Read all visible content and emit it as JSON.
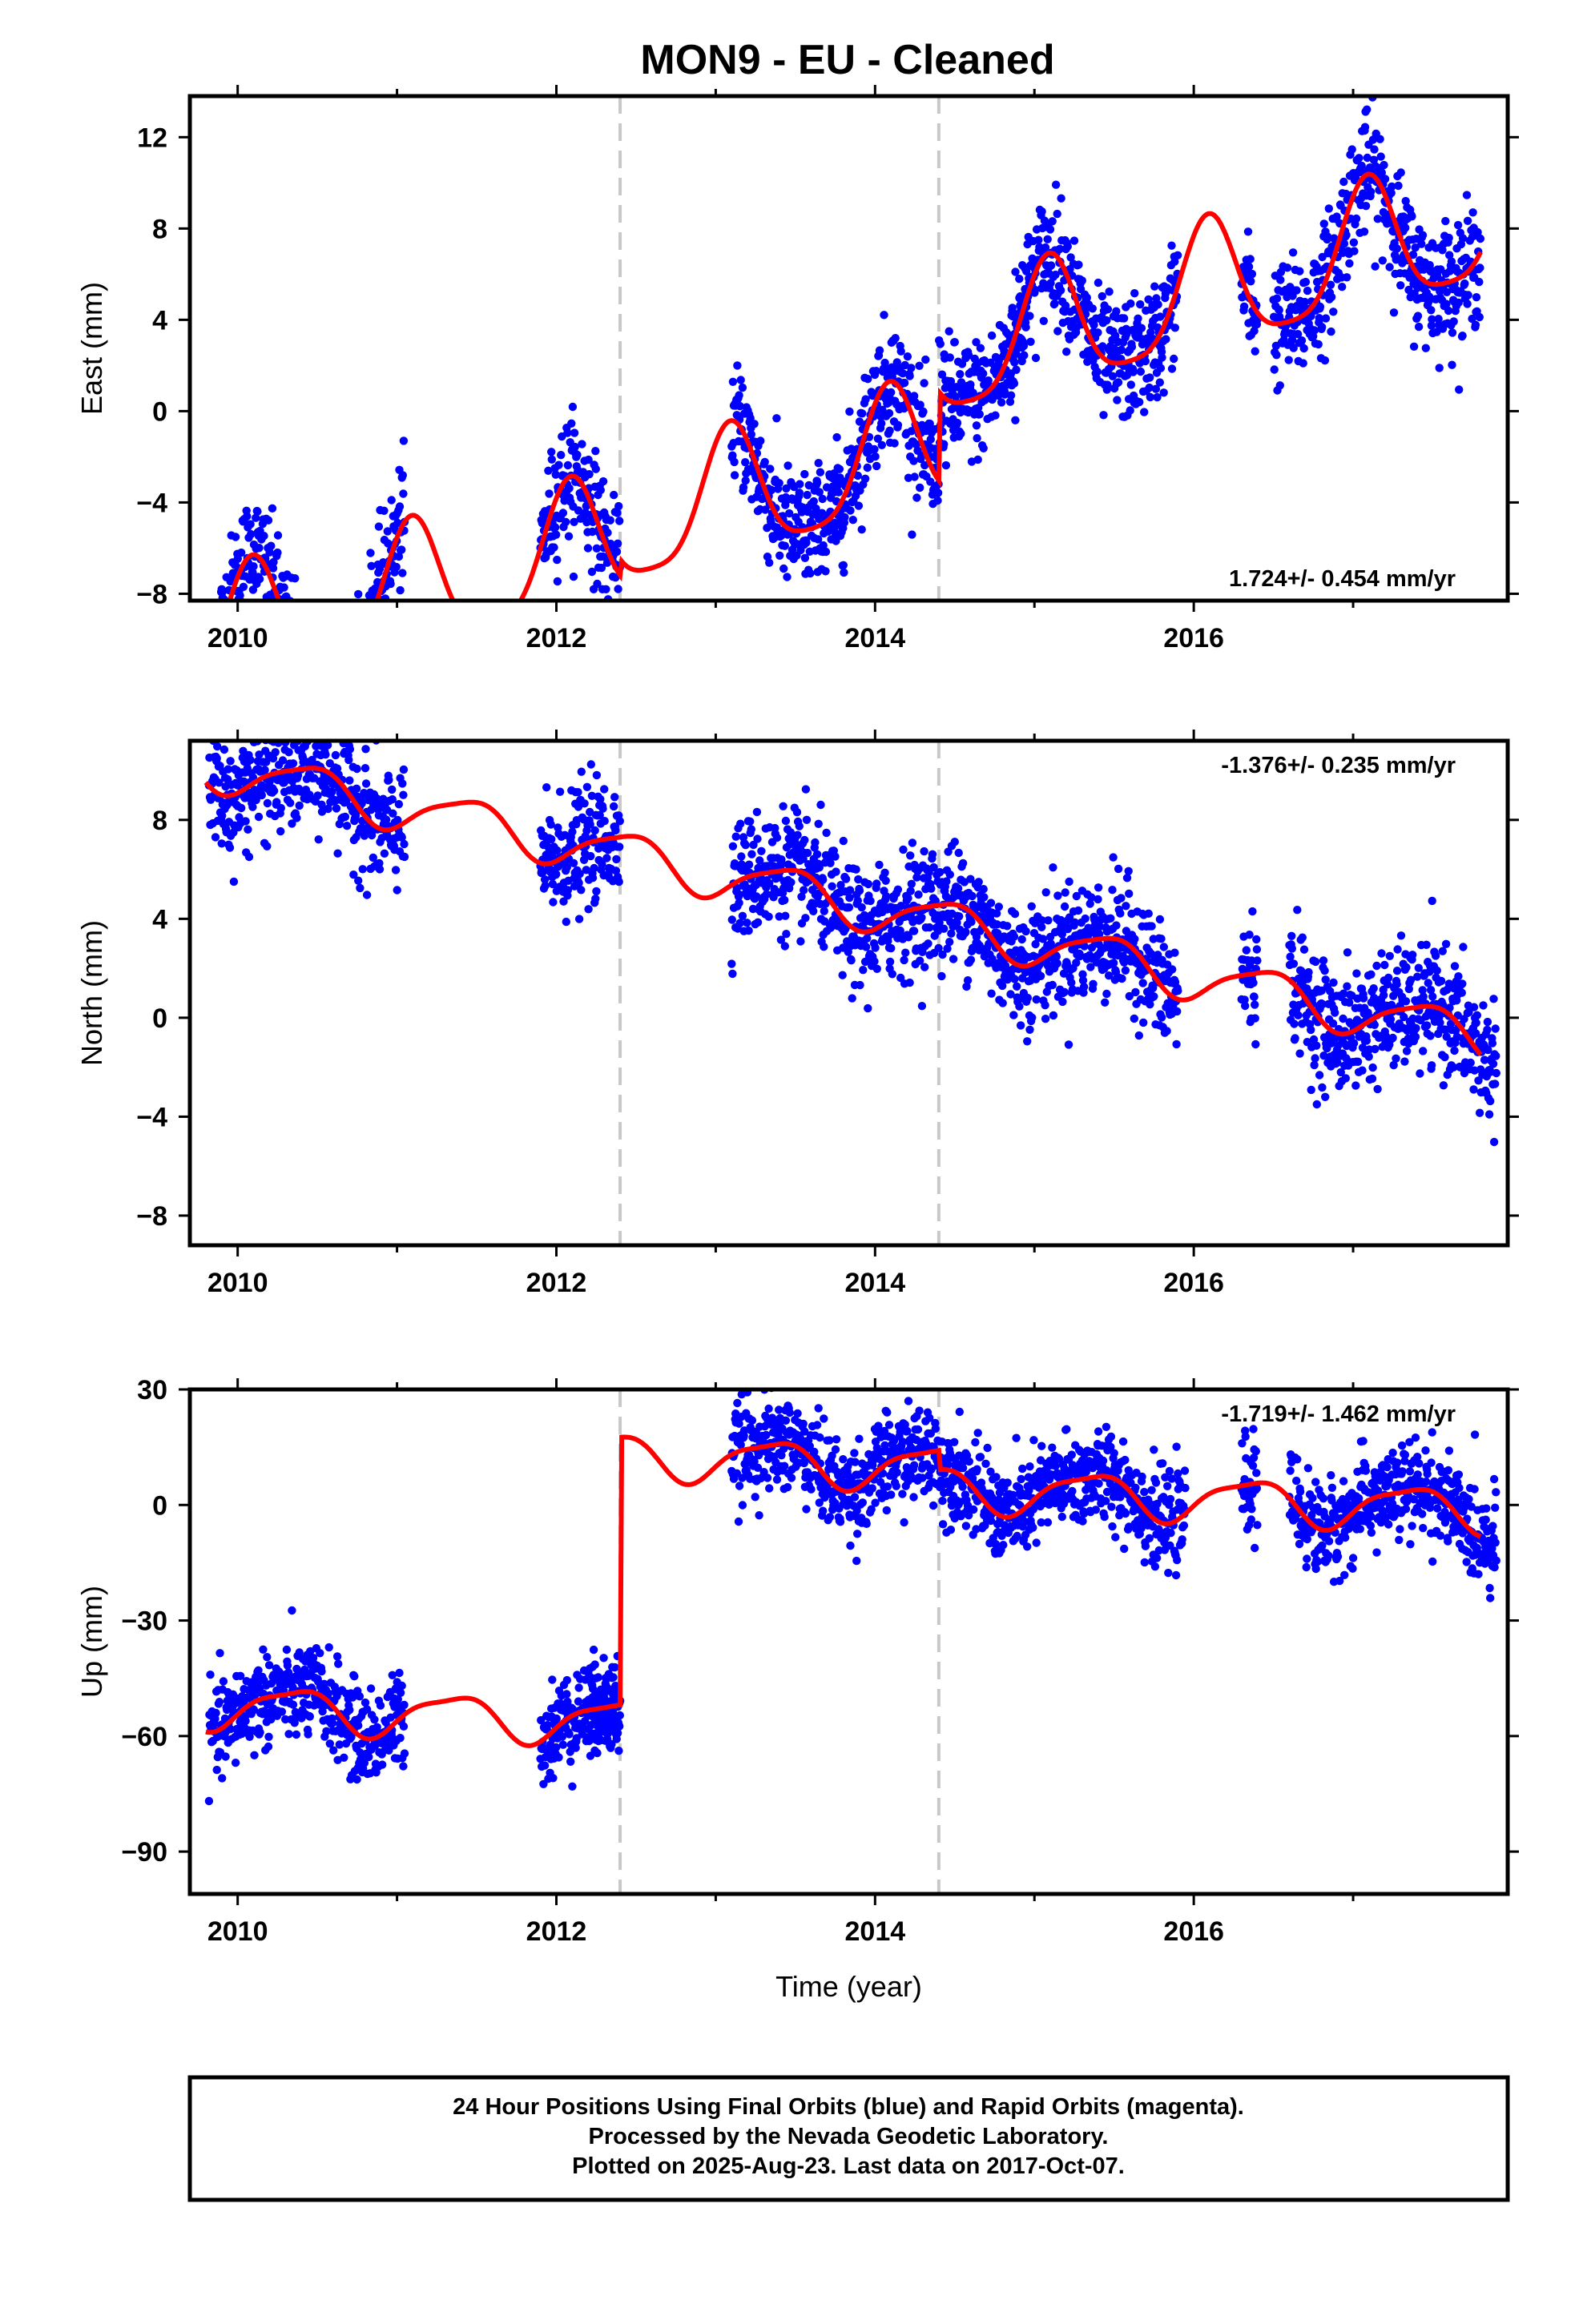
{
  "title": "MON9  - EU - Cleaned",
  "footer": {
    "line1": "24 Hour Positions Using Final Orbits (blue) and Rapid Orbits (magenta).",
    "line2": "Processed by the Nevada Geodetic Laboratory.",
    "line3": "Plotted on 2025-Aug-23. Last data on 2017-Oct-07."
  },
  "colors": {
    "points": "#0000ff",
    "model": "#ff0000",
    "breaks": "#c8c8c8",
    "frame": "#000000"
  },
  "chart_data": [
    {
      "type": "scatter",
      "component": "East",
      "ylabel": "East (mm)",
      "xlabel": "",
      "xlim": [
        2009.7,
        2017.97
      ],
      "ylim": [
        -8.3,
        13.8
      ],
      "xticks": [
        2010,
        2012,
        2014,
        2016
      ],
      "xtick_labels": [
        "2010",
        "2012",
        "2014",
        "2016"
      ],
      "yticks": [
        12,
        8,
        4,
        0,
        -4,
        -8
      ],
      "ytick_labels": [
        "12",
        "8",
        "4",
        "0",
        "−4",
        "−8"
      ],
      "rate_text": "1.724+/- 0.454 mm/yr",
      "rate_position": "bottom-right",
      "equipment_breaks": [
        2012.4,
        2014.4
      ],
      "data_spans": [
        [
          2009.82,
          2011.05
        ],
        [
          2011.9,
          2012.4
        ],
        [
          2013.1,
          2014.95
        ],
        [
          2014.85,
          2015.9
        ],
        [
          2016.3,
          2016.4
        ],
        [
          2016.5,
          2017.8
        ]
      ],
      "model": {
        "trend_mm_per_yr": 1.724,
        "segments": [
          {
            "start": 2009.8,
            "end": 2012.4,
            "offset": -3.3
          },
          {
            "start": 2012.4,
            "end": 2014.4,
            "offset": -2.6
          },
          {
            "start": 2014.4,
            "end": 2017.8,
            "offset": 1.3
          }
        ],
        "annual_amp": 2.8,
        "annual_phase": 1.0,
        "semiannual_amp": 0.6,
        "semiannual_phase": 0.4
      },
      "scatter_sd": 1.3
    },
    {
      "type": "scatter",
      "component": "North",
      "ylabel": "North (mm)",
      "xlabel": "",
      "xlim": [
        2009.7,
        2017.97
      ],
      "ylim": [
        -9.2,
        11.2
      ],
      "xticks": [
        2010,
        2012,
        2014,
        2016
      ],
      "xtick_labels": [
        "2010",
        "2012",
        "2014",
        "2016"
      ],
      "yticks": [
        8,
        4,
        0,
        -4,
        -8
      ],
      "ytick_labels": [
        "8",
        "4",
        "0",
        "−4",
        "−8"
      ],
      "rate_text": "-1.376+/- 0.235 mm/yr",
      "rate_position": "top-right",
      "equipment_breaks": [
        2012.4,
        2014.4
      ],
      "data_spans": [
        [
          2009.82,
          2011.05
        ],
        [
          2011.9,
          2012.4
        ],
        [
          2013.1,
          2015.9
        ],
        [
          2016.3,
          2016.4
        ],
        [
          2016.6,
          2017.9
        ]
      ],
      "model": {
        "trend_mm_per_yr": -1.376,
        "segments": [
          {
            "start": 2009.8,
            "end": 2017.8,
            "offset": 4.7
          }
        ],
        "annual_amp": 0.9,
        "annual_phase": -1.2,
        "semiannual_amp": 0.2,
        "semiannual_phase": 0.0
      },
      "scatter_sd": 1.2
    },
    {
      "type": "scatter",
      "component": "Up",
      "ylabel": "Up (mm)",
      "xlabel": "Time (year)",
      "xlim": [
        2009.7,
        2017.97
      ],
      "ylim": [
        -101,
        30
      ],
      "xticks": [
        2010,
        2012,
        2014,
        2016
      ],
      "xtick_labels": [
        "2010",
        "2012",
        "2014",
        "2016"
      ],
      "yticks": [
        30,
        0,
        -30,
        -60,
        -90
      ],
      "ytick_labels": [
        "30",
        "0",
        "−30",
        "−60",
        "−90"
      ],
      "rate_text": "-1.719+/- 1.462 mm/yr",
      "rate_position": "top-right",
      "equipment_breaks": [
        2012.4,
        2014.4
      ],
      "data_spans": [
        [
          2009.82,
          2011.05
        ],
        [
          2011.9,
          2012.4
        ],
        [
          2012.2,
          2012.4
        ],
        [
          2013.1,
          2015.95
        ],
        [
          2016.3,
          2016.4
        ],
        [
          2016.6,
          2017.9
        ]
      ],
      "model": {
        "trend_mm_per_yr": -1.719,
        "segments": [
          {
            "start": 2009.8,
            "end": 2012.4,
            "offset": -59
          },
          {
            "start": 2012.4,
            "end": 2014.4,
            "offset": 10.5
          },
          {
            "start": 2014.4,
            "end": 2017.8,
            "offset": 5.5
          }
        ],
        "annual_amp": 5.5,
        "annual_phase": -0.6,
        "semiannual_amp": 1.5,
        "semiannual_phase": 0.9
      },
      "scatter_sd": 6.0
    }
  ]
}
